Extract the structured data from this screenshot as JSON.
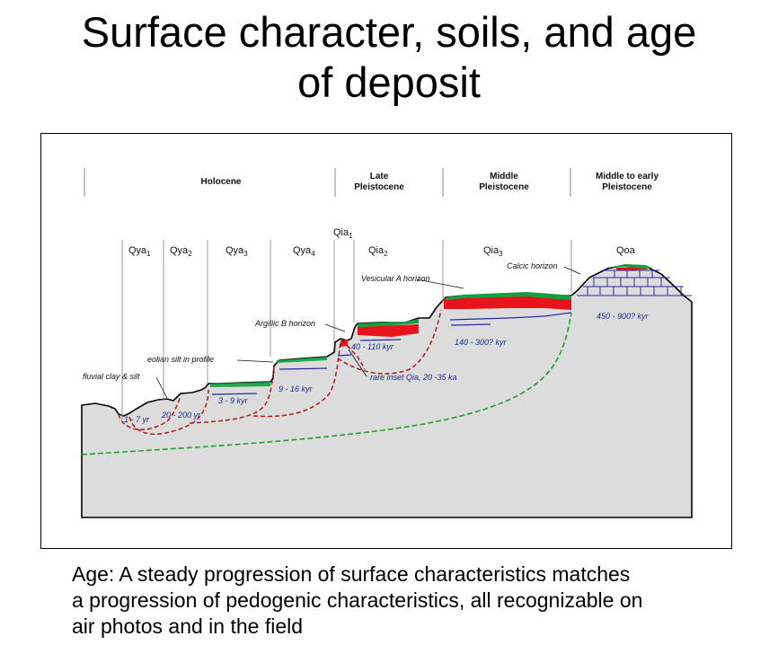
{
  "title": {
    "line1": "Surface character, soils, and age",
    "line2": "of deposit"
  },
  "diagram": {
    "epochs": [
      {
        "lines": [
          "Holocene"
        ]
      },
      {
        "lines": [
          "Late",
          "Pleistocene"
        ]
      },
      {
        "lines": [
          "Middle",
          "Pleistocene"
        ]
      },
      {
        "lines": [
          "Middle to early",
          "Pleistocene"
        ]
      }
    ],
    "units": [
      {
        "base": "Qya",
        "sub": "1"
      },
      {
        "base": "Qya",
        "sub": "2"
      },
      {
        "base": "Qya",
        "sub": "3"
      },
      {
        "base": "Qya",
        "sub": "4"
      },
      {
        "base": "Qia",
        "sub": "1"
      },
      {
        "base": "Qia",
        "sub": "2"
      },
      {
        "base": "Qia",
        "sub": "3"
      },
      {
        "base": "Qoa",
        "sub": ""
      }
    ],
    "annotations": {
      "vesicular": "Vesicular A horizon",
      "calcic": "Calcic horizon",
      "argillic": "Argillic B horizon",
      "eolian": "eolian silt in profile",
      "fluvial": "fluvial clay & silt",
      "rare_inset": "rare inset Qia, 20 -35 ka"
    },
    "ages": {
      "qya1": "1 - 7 yr",
      "qya2": "20 - 200 yr",
      "qya3": "3 - 9 kyr",
      "qya4": "9 - 16 kyr",
      "qia2": "40 - 110 kyr",
      "qia3": "140 - 300? kyr",
      "qoa": "450 - 900? kyr"
    },
    "colors": {
      "ground": "#dcdcdc",
      "soil_red": "#e8141c",
      "surface_green": "#12a040",
      "dashed_red": "#b01818",
      "dashed_green": "#20a030",
      "calcic_blue": "#2a2aa0"
    }
  },
  "caption": {
    "lines": [
      "Age:  A steady progression of surface characteristics matches",
      "a progression of pedogenic characteristics, all recognizable on",
      "air photos and in the field"
    ]
  }
}
